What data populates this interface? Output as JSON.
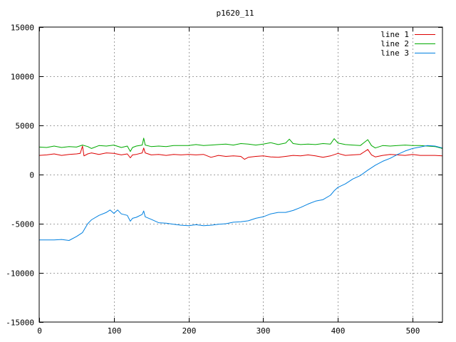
{
  "chart_data": {
    "type": "line",
    "title": "p1620_11",
    "xlabel": "",
    "ylabel": "",
    "xlim": [
      0,
      540
    ],
    "ylim": [
      -15000,
      15000
    ],
    "x_ticks": [
      0,
      100,
      200,
      300,
      400,
      500
    ],
    "y_ticks": [
      -15000,
      -10000,
      -5000,
      0,
      5000,
      10000,
      15000
    ],
    "grid": true,
    "legend_position": "top-right",
    "series": [
      {
        "name": "line 1",
        "color": "#dd0000",
        "points": [
          [
            0,
            1950
          ],
          [
            10,
            2000
          ],
          [
            20,
            2100
          ],
          [
            30,
            1950
          ],
          [
            40,
            2050
          ],
          [
            50,
            2100
          ],
          [
            55,
            2150
          ],
          [
            58,
            2900
          ],
          [
            60,
            1900
          ],
          [
            65,
            2100
          ],
          [
            70,
            2200
          ],
          [
            80,
            2050
          ],
          [
            90,
            2200
          ],
          [
            100,
            2150
          ],
          [
            110,
            2000
          ],
          [
            118,
            2100
          ],
          [
            122,
            1700
          ],
          [
            125,
            2000
          ],
          [
            130,
            2050
          ],
          [
            138,
            2200
          ],
          [
            140,
            2700
          ],
          [
            142,
            2200
          ],
          [
            150,
            2000
          ],
          [
            160,
            2050
          ],
          [
            170,
            1950
          ],
          [
            180,
            2050
          ],
          [
            190,
            2000
          ],
          [
            200,
            2050
          ],
          [
            210,
            2000
          ],
          [
            220,
            2050
          ],
          [
            230,
            1750
          ],
          [
            240,
            1950
          ],
          [
            250,
            1850
          ],
          [
            260,
            1900
          ],
          [
            270,
            1850
          ],
          [
            275,
            1550
          ],
          [
            280,
            1750
          ],
          [
            290,
            1850
          ],
          [
            300,
            1900
          ],
          [
            310,
            1800
          ],
          [
            320,
            1750
          ],
          [
            330,
            1850
          ],
          [
            340,
            1950
          ],
          [
            350,
            1900
          ],
          [
            360,
            2000
          ],
          [
            370,
            1900
          ],
          [
            380,
            1750
          ],
          [
            390,
            1900
          ],
          [
            400,
            2150
          ],
          [
            410,
            1950
          ],
          [
            420,
            2000
          ],
          [
            430,
            2050
          ],
          [
            440,
            2550
          ],
          [
            445,
            2000
          ],
          [
            450,
            1800
          ],
          [
            460,
            1950
          ],
          [
            470,
            2050
          ],
          [
            480,
            2000
          ],
          [
            490,
            1950
          ],
          [
            500,
            2050
          ],
          [
            510,
            1950
          ],
          [
            520,
            1950
          ],
          [
            530,
            1950
          ],
          [
            540,
            1900
          ]
        ]
      },
      {
        "name": "line 2",
        "color": "#00aa00",
        "points": [
          [
            0,
            2800
          ],
          [
            10,
            2750
          ],
          [
            20,
            2900
          ],
          [
            30,
            2750
          ],
          [
            40,
            2850
          ],
          [
            50,
            2800
          ],
          [
            58,
            3000
          ],
          [
            65,
            2850
          ],
          [
            70,
            2650
          ],
          [
            80,
            2950
          ],
          [
            90,
            2900
          ],
          [
            100,
            3000
          ],
          [
            110,
            2750
          ],
          [
            118,
            2900
          ],
          [
            122,
            2350
          ],
          [
            125,
            2750
          ],
          [
            130,
            2900
          ],
          [
            138,
            3000
          ],
          [
            140,
            3700
          ],
          [
            142,
            3000
          ],
          [
            150,
            2850
          ],
          [
            160,
            2900
          ],
          [
            170,
            2850
          ],
          [
            180,
            2950
          ],
          [
            190,
            2950
          ],
          [
            200,
            2950
          ],
          [
            210,
            3050
          ],
          [
            220,
            2950
          ],
          [
            230,
            3000
          ],
          [
            240,
            3050
          ],
          [
            250,
            3100
          ],
          [
            260,
            3000
          ],
          [
            270,
            3150
          ],
          [
            280,
            3100
          ],
          [
            290,
            3000
          ],
          [
            300,
            3100
          ],
          [
            310,
            3250
          ],
          [
            320,
            3050
          ],
          [
            330,
            3200
          ],
          [
            335,
            3600
          ],
          [
            340,
            3150
          ],
          [
            350,
            3050
          ],
          [
            360,
            3100
          ],
          [
            370,
            3050
          ],
          [
            380,
            3150
          ],
          [
            390,
            3100
          ],
          [
            395,
            3650
          ],
          [
            400,
            3200
          ],
          [
            410,
            3050
          ],
          [
            420,
            3000
          ],
          [
            430,
            2950
          ],
          [
            440,
            3550
          ],
          [
            445,
            2950
          ],
          [
            450,
            2700
          ],
          [
            460,
            2950
          ],
          [
            470,
            2900
          ],
          [
            480,
            2950
          ],
          [
            490,
            3000
          ],
          [
            500,
            2950
          ],
          [
            510,
            2950
          ],
          [
            520,
            2900
          ],
          [
            530,
            2850
          ],
          [
            540,
            2650
          ]
        ]
      },
      {
        "name": "line 3",
        "color": "#0080e0",
        "points": [
          [
            0,
            -6650
          ],
          [
            10,
            -6650
          ],
          [
            20,
            -6650
          ],
          [
            30,
            -6600
          ],
          [
            40,
            -6700
          ],
          [
            50,
            -6300
          ],
          [
            58,
            -5900
          ],
          [
            65,
            -5000
          ],
          [
            70,
            -4600
          ],
          [
            80,
            -4150
          ],
          [
            90,
            -3850
          ],
          [
            95,
            -3600
          ],
          [
            100,
            -3950
          ],
          [
            105,
            -3600
          ],
          [
            110,
            -4000
          ],
          [
            118,
            -4150
          ],
          [
            122,
            -4750
          ],
          [
            125,
            -4450
          ],
          [
            130,
            -4350
          ],
          [
            138,
            -4050
          ],
          [
            140,
            -3700
          ],
          [
            142,
            -4300
          ],
          [
            150,
            -4550
          ],
          [
            160,
            -4900
          ],
          [
            170,
            -4950
          ],
          [
            180,
            -5050
          ],
          [
            190,
            -5150
          ],
          [
            200,
            -5200
          ],
          [
            210,
            -5100
          ],
          [
            220,
            -5200
          ],
          [
            230,
            -5150
          ],
          [
            240,
            -5050
          ],
          [
            250,
            -5000
          ],
          [
            260,
            -4850
          ],
          [
            270,
            -4800
          ],
          [
            280,
            -4700
          ],
          [
            290,
            -4450
          ],
          [
            300,
            -4300
          ],
          [
            310,
            -4000
          ],
          [
            320,
            -3850
          ],
          [
            330,
            -3850
          ],
          [
            340,
            -3650
          ],
          [
            350,
            -3350
          ],
          [
            360,
            -3000
          ],
          [
            370,
            -2700
          ],
          [
            380,
            -2550
          ],
          [
            390,
            -2100
          ],
          [
            395,
            -1650
          ],
          [
            400,
            -1300
          ],
          [
            410,
            -950
          ],
          [
            420,
            -450
          ],
          [
            430,
            -100
          ],
          [
            440,
            450
          ],
          [
            450,
            950
          ],
          [
            460,
            1350
          ],
          [
            470,
            1650
          ],
          [
            480,
            2050
          ],
          [
            490,
            2400
          ],
          [
            500,
            2650
          ],
          [
            510,
            2800
          ],
          [
            520,
            2950
          ],
          [
            530,
            2900
          ],
          [
            540,
            2700
          ]
        ]
      }
    ]
  }
}
